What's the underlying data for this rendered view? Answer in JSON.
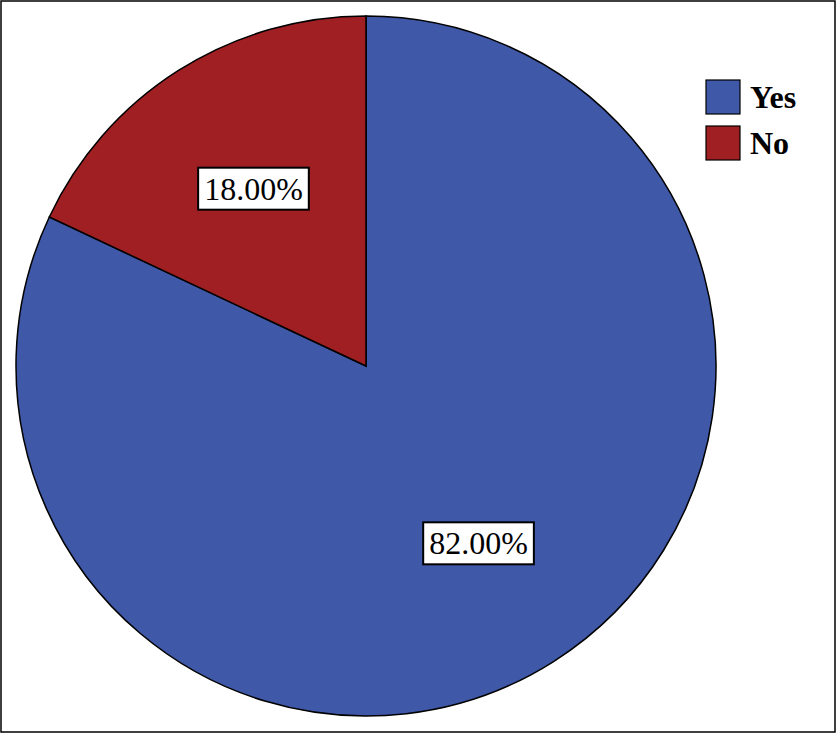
{
  "chart_data": {
    "type": "pie",
    "categories": [
      "Yes",
      "No"
    ],
    "values": [
      82,
      18
    ],
    "value_labels": [
      "82.00%",
      "18.00%"
    ],
    "colors": [
      "#3f58a8",
      "#a01f23"
    ],
    "data_labels": true,
    "legend": "top-right"
  }
}
